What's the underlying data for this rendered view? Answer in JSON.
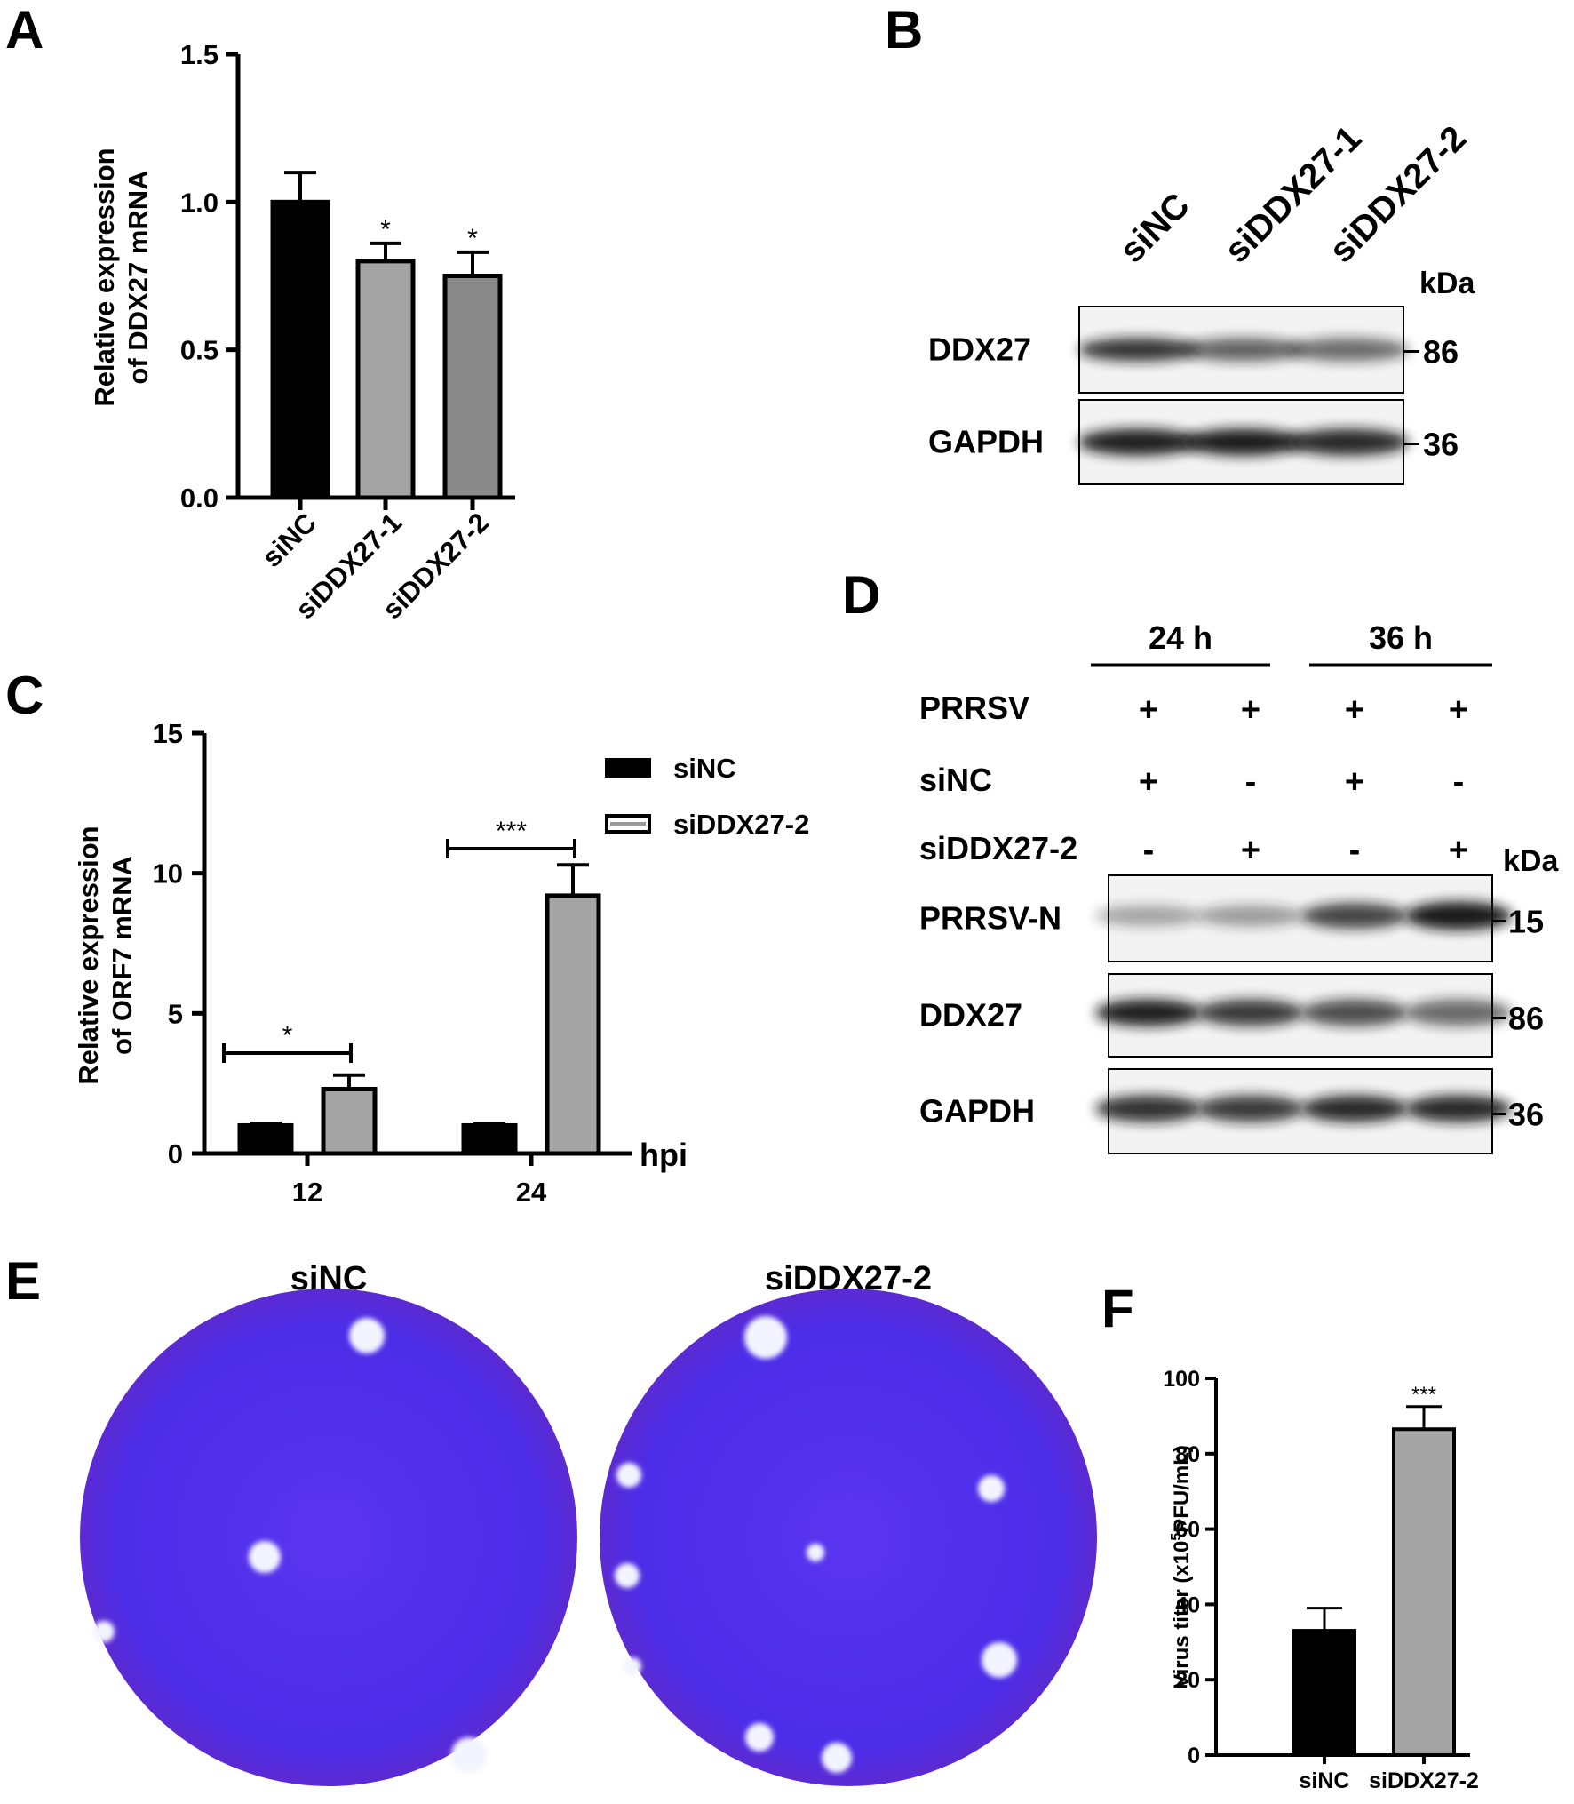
{
  "panels": [
    "A",
    "B",
    "C",
    "D",
    "E",
    "F"
  ],
  "chart_data": [
    {
      "panel": "A",
      "type": "bar",
      "ylabel": "Relative expression\nof DDX27 mRNA",
      "ylim": [
        0,
        1.5
      ],
      "yticks": [
        "0.0",
        "0.5",
        "1.0",
        "1.5"
      ],
      "categories": [
        "siNC",
        "siDDX27-1",
        "siDDX27-2"
      ],
      "values": [
        1.0,
        0.8,
        0.75
      ],
      "errors": [
        0.1,
        0.06,
        0.08
      ],
      "significance": [
        "",
        "*",
        "*"
      ],
      "colors": [
        "#000000",
        "#a4a4a4",
        "#8a8a8a"
      ]
    },
    {
      "panel": "C",
      "type": "bar",
      "ylabel": "Relative expression\nof ORF7 mRNA",
      "xlabel": "hpi",
      "ylim": [
        0,
        15
      ],
      "yticks": [
        "0",
        "5",
        "10",
        "15"
      ],
      "categories": [
        "12",
        "24"
      ],
      "series": [
        {
          "name": "siNC",
          "values": [
            1.0,
            1.0
          ],
          "errors": [
            0.08,
            0.05
          ],
          "color": "#000000"
        },
        {
          "name": "siDDX27-2",
          "values": [
            2.3,
            9.2
          ],
          "errors": [
            0.5,
            1.1
          ],
          "color": "#a4a4a4"
        }
      ],
      "significance": [
        "*",
        "***"
      ],
      "legend": "top-right"
    },
    {
      "panel": "F",
      "type": "bar",
      "ylabel": "Virus titer (x10",
      "ylabel_sup": "5",
      "ylabel_rest": "PFU/mL)",
      "ylim": [
        0,
        100
      ],
      "yticks": [
        "0",
        "20",
        "40",
        "60",
        "80",
        "100"
      ],
      "categories": [
        "siNC",
        "siDDX27-2"
      ],
      "values": [
        33,
        86.5
      ],
      "errors": [
        6,
        6
      ],
      "significance": [
        "",
        "***"
      ],
      "colors": [
        "#000000",
        "#a4a4a4"
      ]
    }
  ],
  "blot_b": {
    "lanes": [
      "siNC",
      "siDDX27-1",
      "siDDX27-2"
    ],
    "unit": "kDa",
    "rows": [
      {
        "label": "DDX27",
        "kda": "86",
        "intensity": [
          0.85,
          0.6,
          0.55
        ]
      },
      {
        "label": "GAPDH",
        "kda": "36",
        "intensity": [
          0.95,
          0.97,
          0.9
        ]
      }
    ]
  },
  "blot_d": {
    "times": [
      "24 h",
      "36 h"
    ],
    "conditions": [
      {
        "label": "PRRSV",
        "signs": [
          "+",
          "+",
          "+",
          "+"
        ]
      },
      {
        "label": "siNC",
        "signs": [
          "+",
          "-",
          "+",
          "-"
        ]
      },
      {
        "label": "siDDX27-2",
        "signs": [
          "-",
          "+",
          "-",
          "+"
        ]
      }
    ],
    "unit": "kDa",
    "rows": [
      {
        "label": "PRRSV-N",
        "kda": "15",
        "intensity": [
          0.25,
          0.3,
          0.75,
          0.98
        ]
      },
      {
        "label": "DDX27",
        "kda": "86",
        "intensity": [
          0.95,
          0.8,
          0.7,
          0.55
        ]
      },
      {
        "label": "GAPDH",
        "kda": "36",
        "intensity": [
          0.85,
          0.8,
          0.9,
          0.9
        ]
      }
    ]
  },
  "plaques": {
    "plates": [
      {
        "label": "siNC",
        "count": 4
      },
      {
        "label": "siDDX27-2",
        "count": 9
      }
    ],
    "plate_color": "#4a2ee6",
    "plaque_color": "#f2f4ff"
  }
}
